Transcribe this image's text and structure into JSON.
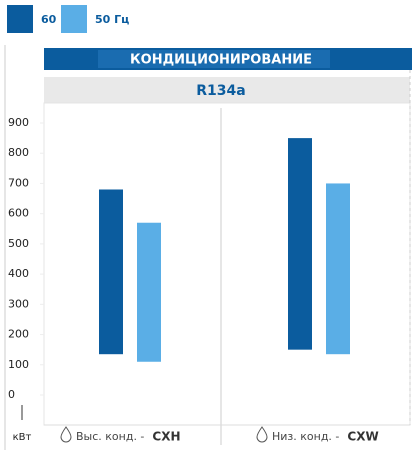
{
  "chart_data": {
    "type": "floating_bar",
    "title": "КОНДИЦИОНИРОВАНИЕ",
    "subtitle": "R134a",
    "y_label": "кВт",
    "categories": [
      "CXH",
      "CXW"
    ],
    "category_prefixes": [
      "Выс. конд. -",
      "Низ. конд. -"
    ],
    "series": [
      {
        "name": "60 Гц",
        "color": "#0b5c9e",
        "low": [
          135,
          150
        ],
        "high": [
          680,
          850
        ]
      },
      {
        "name": "50 Гц",
        "color": "#5aaee6",
        "low": [
          110,
          135
        ],
        "high": [
          570,
          700
        ]
      }
    ],
    "ylim": [
      0,
      900
    ],
    "yticks": [
      0,
      100,
      200,
      300,
      400,
      500,
      600,
      700,
      800,
      900
    ]
  }
}
